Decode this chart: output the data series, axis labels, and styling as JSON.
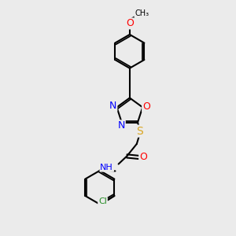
{
  "bg_color": "#ebebeb",
  "bond_color": "black",
  "bond_width": 1.5,
  "figsize": [
    3.0,
    3.0
  ],
  "dpi": 100,
  "atom_colors": {
    "N": "#0000FF",
    "O": "#FF0000",
    "S": "#DAA520",
    "Cl": "#228B22",
    "H": "#555555",
    "C": "black"
  },
  "font_size": 8.0,
  "xlim": [
    0,
    10
  ],
  "ylim": [
    0,
    10
  ]
}
